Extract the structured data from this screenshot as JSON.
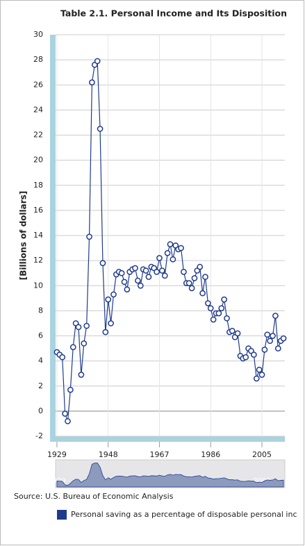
{
  "chart_data": {
    "type": "line",
    "title": "Table 2.1. Personal Income and Its Disposition",
    "y_label": "[Billions of dollars]",
    "source": "Source: U.S. Bureau of Economic Analysis",
    "x": [
      1929,
      1930,
      1931,
      1932,
      1933,
      1934,
      1935,
      1936,
      1937,
      1938,
      1939,
      1940,
      1941,
      1942,
      1943,
      1944,
      1945,
      1946,
      1947,
      1948,
      1949,
      1950,
      1951,
      1952,
      1953,
      1954,
      1955,
      1956,
      1957,
      1958,
      1959,
      1960,
      1961,
      1962,
      1963,
      1964,
      1965,
      1966,
      1967,
      1968,
      1969,
      1970,
      1971,
      1972,
      1973,
      1974,
      1975,
      1976,
      1977,
      1978,
      1979,
      1980,
      1981,
      1982,
      1983,
      1984,
      1985,
      1986,
      1987,
      1988,
      1989,
      1990,
      1991,
      1992,
      1993,
      1994,
      1995,
      1996,
      1997,
      1998,
      1999,
      2000,
      2001,
      2002,
      2003,
      2004,
      2005,
      2006,
      2007,
      2008,
      2009,
      2010,
      2011,
      2012,
      2013
    ],
    "series": [
      {
        "name": "Personal saving as a percentage of disposable personal inc",
        "color": "#1f3b8c",
        "values": [
          4.7,
          4.5,
          4.3,
          -0.2,
          -0.8,
          1.7,
          5.1,
          7.0,
          6.7,
          2.9,
          5.4,
          6.8,
          13.9,
          26.2,
          27.6,
          27.9,
          22.5,
          11.8,
          6.3,
          8.9,
          7.0,
          9.3,
          10.9,
          11.1,
          11.0,
          10.3,
          9.7,
          11.1,
          11.3,
          11.4,
          10.4,
          10.0,
          11.3,
          11.2,
          10.7,
          11.5,
          11.4,
          11.1,
          12.2,
          11.2,
          10.8,
          12.6,
          13.3,
          12.1,
          13.2,
          12.9,
          13.0,
          11.1,
          10.2,
          10.2,
          9.8,
          10.6,
          11.2,
          11.5,
          9.4,
          10.7,
          8.6,
          8.2,
          7.3,
          7.8,
          7.8,
          8.2,
          8.9,
          7.4,
          6.3,
          6.4,
          5.9,
          6.2,
          4.4,
          4.2,
          4.3,
          5.0,
          4.8,
          4.5,
          2.6,
          3.3,
          2.9,
          4.9,
          6.1,
          5.6,
          6.0,
          7.6,
          5.0,
          5.6,
          5.8
        ]
      }
    ],
    "xlim": [
      1928.5,
      2013.5
    ],
    "xticks": [
      1929,
      1948,
      1967,
      1986,
      2005
    ],
    "ylim": [
      -2,
      30
    ],
    "yticks": [
      -2,
      0,
      2,
      4,
      6,
      8,
      10,
      12,
      14,
      16,
      18,
      20,
      22,
      24,
      26,
      28,
      30
    ],
    "grid": true
  }
}
